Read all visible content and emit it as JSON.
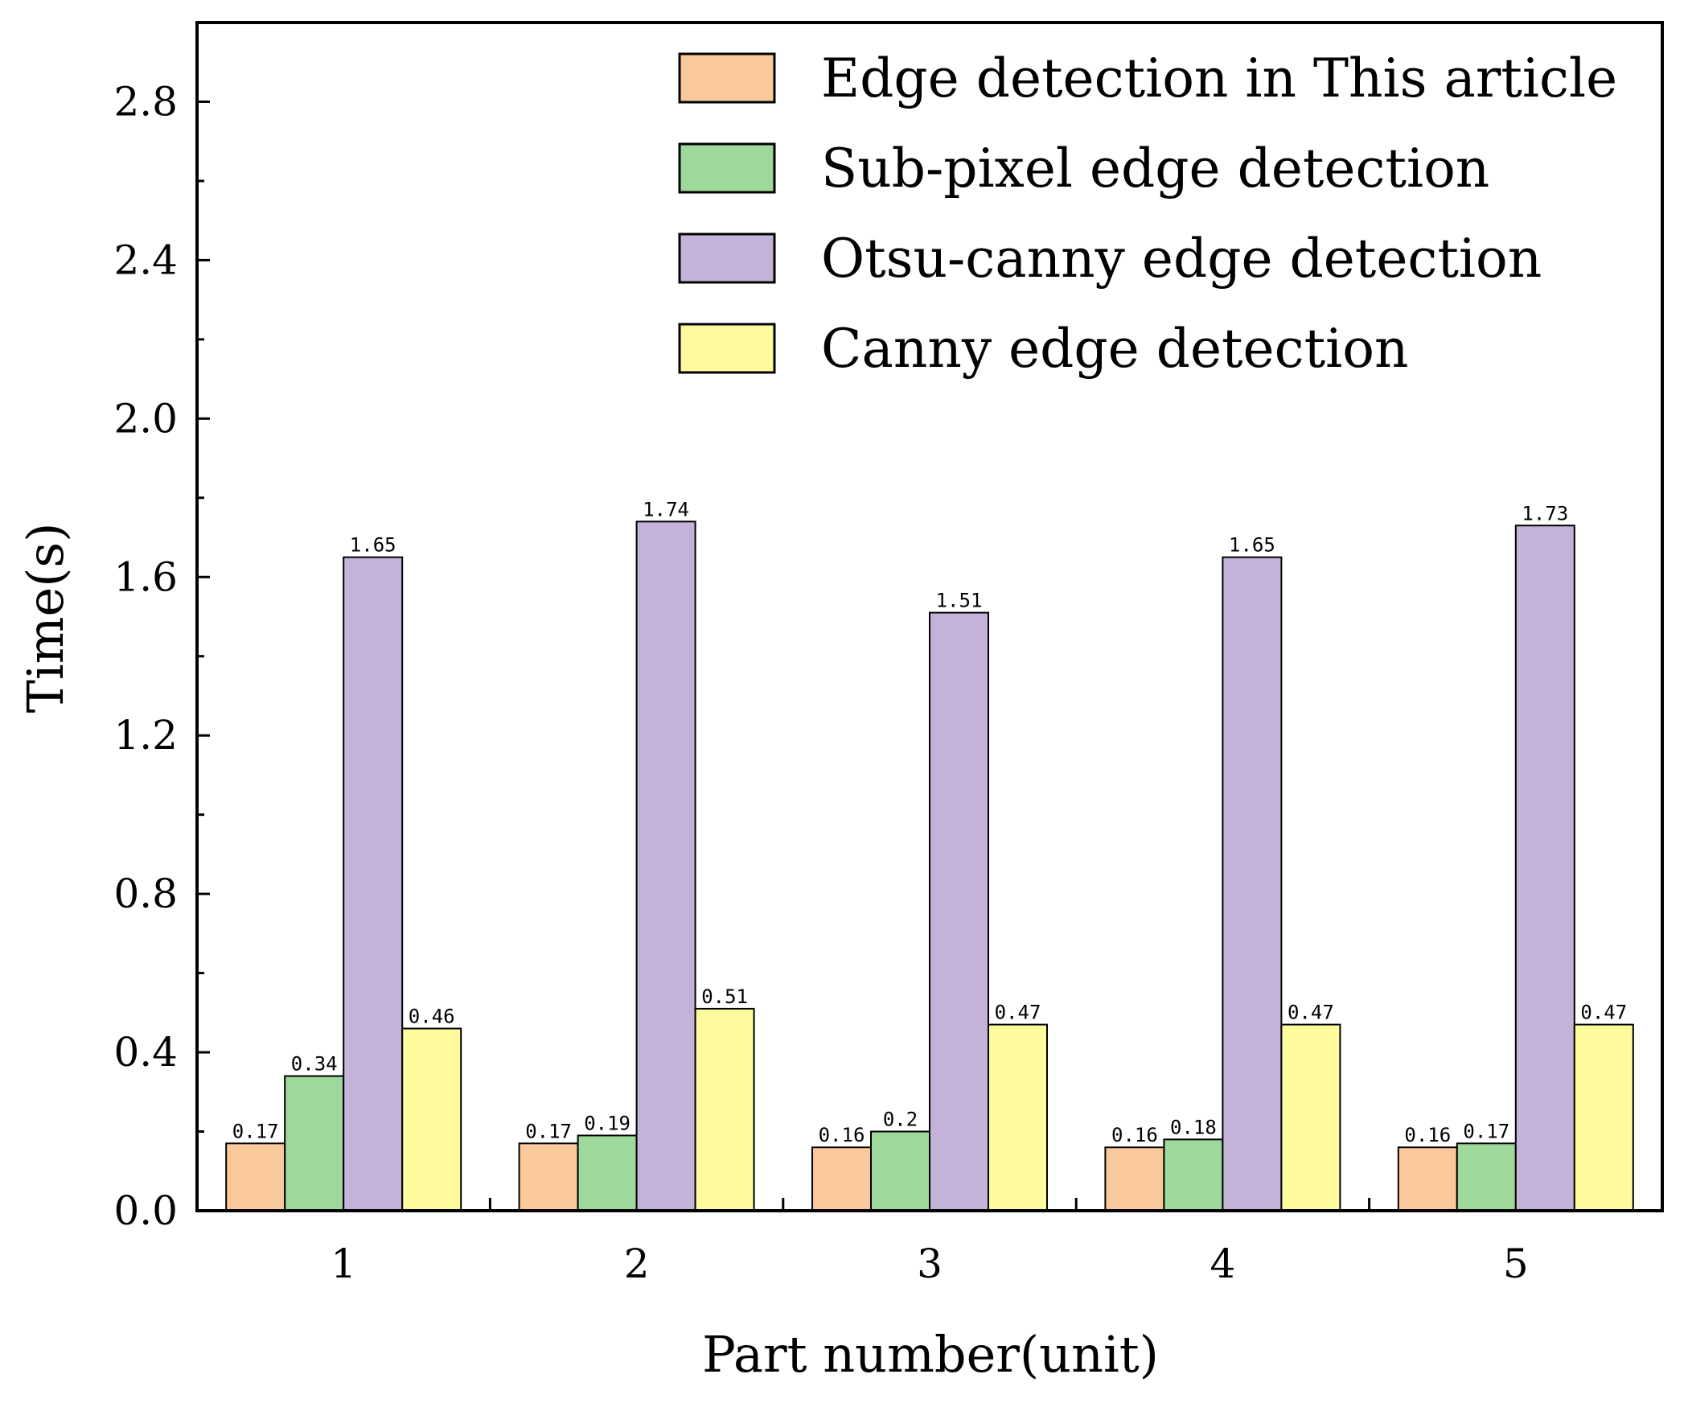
{
  "chart_data": {
    "type": "bar",
    "categories": [
      "1",
      "2",
      "3",
      "4",
      "5"
    ],
    "series": [
      {
        "name": "Edge detection in This article",
        "color": "#F9C89B",
        "values": [
          0.17,
          0.17,
          0.16,
          0.16,
          0.16
        ],
        "labels": [
          "0.17",
          "0.17",
          "0.16",
          "0.16",
          "0.16"
        ]
      },
      {
        "name": "Sub-pixel edge detection",
        "color": "#9ED89A",
        "values": [
          0.34,
          0.19,
          0.2,
          0.18,
          0.17
        ],
        "labels": [
          "0.34",
          "0.19",
          "0.2",
          "0.18",
          "0.17"
        ]
      },
      {
        "name": "Otsu-canny edge detection",
        "color": "#C4B3D8",
        "values": [
          1.65,
          1.74,
          1.51,
          1.65,
          1.73
        ],
        "labels": [
          "1.65",
          "1.74",
          "1.51",
          "1.65",
          "1.73"
        ]
      },
      {
        "name": "Canny edge detection",
        "color": "#FEFB9C",
        "values": [
          0.46,
          0.51,
          0.47,
          0.47,
          0.47
        ],
        "labels": [
          "0.46",
          "0.51",
          "0.47",
          "0.47",
          "0.47"
        ]
      }
    ],
    "xlabel": "Part number(unit)",
    "ylabel": "Time(s)",
    "ylim": [
      0,
      3.0
    ],
    "yticks": [
      "0.0",
      "0.4",
      "0.8",
      "1.2",
      "1.6",
      "2.0",
      "2.4",
      "2.8"
    ],
    "grid": false,
    "legend_position": "top-right"
  }
}
